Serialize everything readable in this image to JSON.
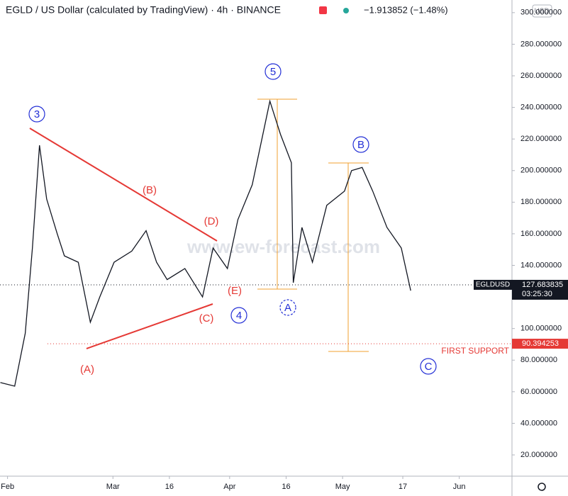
{
  "chart_data": {
    "type": "line",
    "title": "EGLD / US Dollar (calculated by TradingView) · 4h · BINANCE",
    "change": "−1.913852 (−1.48%)",
    "currency": "USD",
    "watermark": "www.ew-forecast.com",
    "symbol": "EGLDUSD",
    "last_price": 127.683835,
    "countdown": "03:25:30",
    "support_level": 90.394253,
    "support_label": "FIRST SUPPORT",
    "wave_labels": [
      "3",
      "5",
      "B",
      "4",
      "A",
      "C",
      "(A)",
      "(B)",
      "(C)",
      "(D)",
      "(E)"
    ],
    "color": "#131722",
    "x": [
      30.1,
      33.9,
      36.7,
      38.6,
      40.5,
      42.4,
      45.2,
      47.1,
      50.8,
      54.0,
      56.5,
      60.3,
      65.0,
      68.8,
      71.6,
      74.4,
      79.1,
      83.8,
      86.6,
      90.4,
      93.2,
      97.0,
      101.7,
      104.5,
      107.4,
      107.9,
      110.2,
      113.0,
      116.8,
      121.5,
      123.4,
      126.2,
      129.0,
      132.8,
      136.6,
      139.1
    ],
    "values": [
      65.8,
      63.5,
      97,
      151,
      216,
      182,
      160,
      146,
      142,
      104,
      120,
      142,
      149,
      162,
      142,
      131,
      138,
      120,
      151,
      138,
      169,
      191,
      244,
      223,
      205,
      129,
      164,
      142,
      178,
      187,
      200,
      202,
      187,
      164,
      151,
      124
    ],
    "xlim": [
      30,
      166
    ],
    "xticks": [
      {
        "value": 32,
        "label": "Feb"
      },
      {
        "value": 60,
        "label": "Mar"
      },
      {
        "value": 75,
        "label": "16"
      },
      {
        "value": 91,
        "label": "Apr"
      },
      {
        "value": 106,
        "label": "16"
      },
      {
        "value": 121,
        "label": "May"
      },
      {
        "value": 137,
        "label": "17"
      },
      {
        "value": 152,
        "label": "Jun"
      }
    ],
    "ylim": [
      0,
      308
    ],
    "yticks": [
      {
        "value": 20,
        "label": "20.000000"
      },
      {
        "value": 40,
        "label": "40.000000"
      },
      {
        "value": 60,
        "label": "60.000000"
      },
      {
        "value": 80,
        "label": "80.000000"
      },
      {
        "value": 100,
        "label": "100.000000"
      },
      {
        "value": 120,
        "label": "120.000000"
      },
      {
        "value": 140,
        "label": "140.000000"
      },
      {
        "value": 160,
        "label": "160.000000"
      },
      {
        "value": 180,
        "label": "180.000000"
      },
      {
        "value": 200,
        "label": "200.000000"
      },
      {
        "value": 220,
        "label": "220.000000"
      },
      {
        "value": 240,
        "label": "240.000000"
      },
      {
        "value": 260,
        "label": "260.000000"
      },
      {
        "value": 280,
        "label": "280.000000"
      },
      {
        "value": 300,
        "label": "300.000000"
      }
    ],
    "grid": false
  }
}
